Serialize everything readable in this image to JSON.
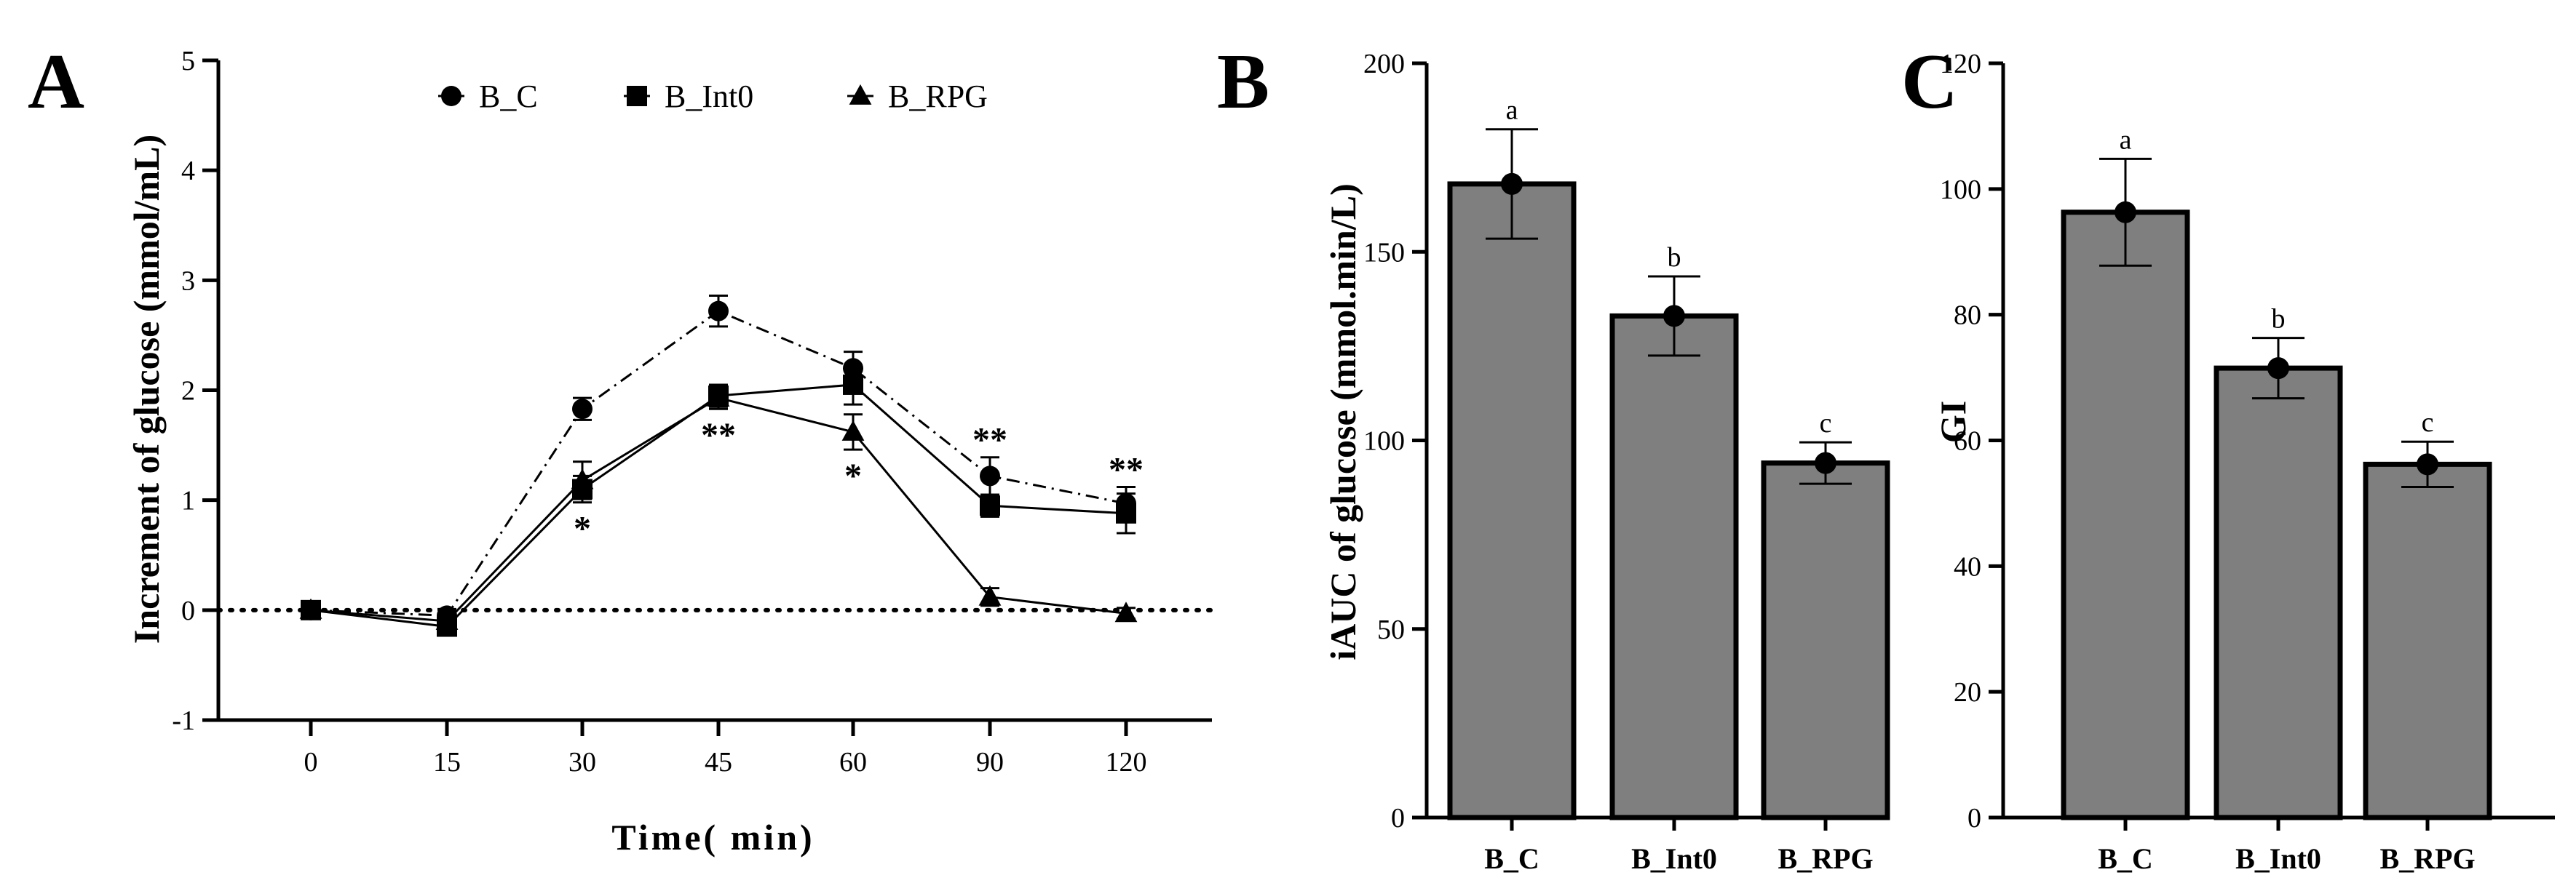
{
  "chart_data": [
    {
      "panel": "A",
      "type": "line",
      "xlabel": "Time( min)",
      "ylabel": "Increment of glucose (mmol/mL)",
      "categories": [
        "0",
        "15",
        "30",
        "45",
        "60",
        "90",
        "120"
      ],
      "ylim": [
        -1,
        5
      ],
      "yticks": [
        -1,
        0,
        1,
        2,
        3,
        4,
        5
      ],
      "reference_line": 0,
      "legend_position": "top",
      "series": [
        {
          "name": "B_C",
          "marker": "circle",
          "line": "dash-dot",
          "values": [
            0,
            -0.05,
            1.83,
            2.72,
            2.2,
            1.22,
            0.97
          ],
          "errors": [
            0.05,
            0.06,
            0.1,
            0.14,
            0.15,
            0.17,
            0.15
          ]
        },
        {
          "name": "B_Int0",
          "marker": "square",
          "line": "solid",
          "values": [
            0,
            -0.15,
            1.1,
            1.95,
            2.05,
            0.95,
            0.88
          ],
          "errors": [
            0.05,
            0.06,
            0.12,
            0.1,
            0.18,
            0.1,
            0.18
          ]
        },
        {
          "name": "B_RPG",
          "marker": "triangle",
          "line": "solid",
          "values": [
            0,
            -0.1,
            1.18,
            1.93,
            1.62,
            0.12,
            -0.03
          ],
          "errors": [
            0.05,
            0.06,
            0.17,
            0.1,
            0.16,
            0.08,
            0.05
          ]
        }
      ],
      "annotations": [
        {
          "category": "30",
          "text": "*",
          "position": "below"
        },
        {
          "category": "45",
          "text": "**",
          "position": "below"
        },
        {
          "category": "60",
          "text": "*",
          "position": "below"
        },
        {
          "category": "90",
          "text": "**",
          "position": "above"
        },
        {
          "category": "120",
          "text": "**",
          "position": "above"
        }
      ]
    },
    {
      "panel": "B",
      "type": "bar",
      "ylabel": "iAUC of glucose (mmol.min/L)",
      "categories": [
        "B_C",
        "B_Int0",
        "B_RPG"
      ],
      "values": [
        168,
        133,
        94
      ],
      "errors": [
        14.5,
        10.5,
        5.5
      ],
      "letters": [
        "a",
        "b",
        "c"
      ],
      "ylim": [
        0,
        200
      ],
      "yticks": [
        0,
        50,
        100,
        150,
        200
      ]
    },
    {
      "panel": "C",
      "type": "bar",
      "ylabel": "GI",
      "categories": [
        "B_C",
        "B_Int0",
        "B_RPG"
      ],
      "values": [
        96.3,
        71.5,
        56.2
      ],
      "errors": [
        8.5,
        4.8,
        3.6
      ],
      "letters": [
        "a",
        "b",
        "c"
      ],
      "ylim": [
        0,
        120
      ],
      "yticks": [
        0,
        20,
        40,
        60,
        80,
        100,
        120
      ]
    }
  ],
  "colors": {
    "axis": "#000000",
    "bar_fill": "#7f7f7f",
    "marker": "#000000"
  }
}
